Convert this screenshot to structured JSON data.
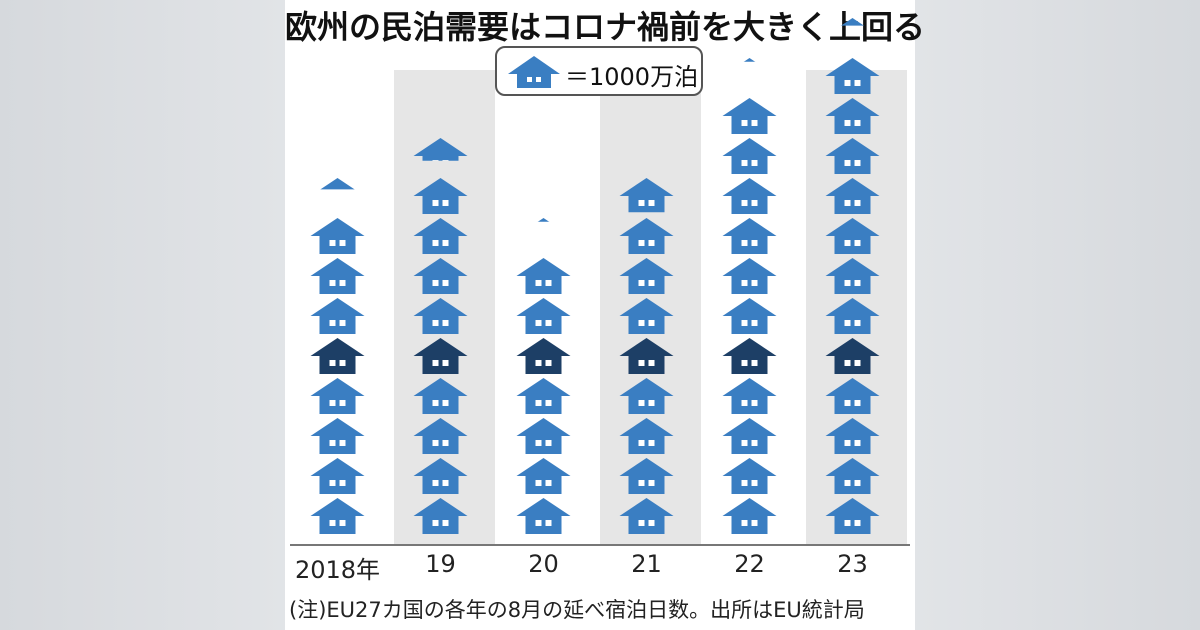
{
  "title": "欧州の民泊需要はコロナ禍前を大きく上回る",
  "legend": {
    "icon": "house-icon",
    "label": "＝1000万泊"
  },
  "note": "(注)EU27カ国の各年の8月の延べ宿泊日数。出所はEU統計局",
  "colors": {
    "house": "#3a7ec2",
    "house_dark": "#1d3f66",
    "band": "#e6e6e6",
    "window": "#ffffff"
  },
  "chart_data": {
    "type": "bar",
    "categories": [
      "2018年",
      "19",
      "20",
      "21",
      "22",
      "23"
    ],
    "values": [
      8.3,
      9.6,
      7.1,
      8.9,
      11.1,
      12.2
    ],
    "unit_label": "＝1000万泊",
    "highlight_unit": 5,
    "grid": false
  }
}
